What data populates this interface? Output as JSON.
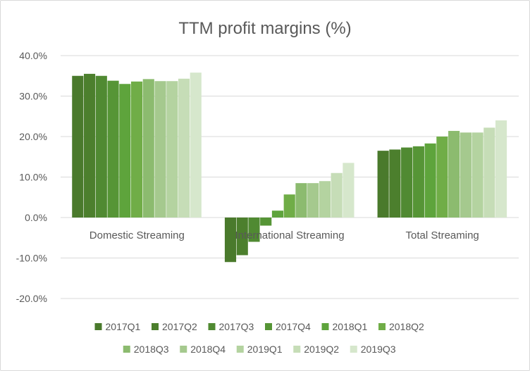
{
  "chart_data": {
    "type": "bar",
    "title": "TTM profit margins (%)",
    "categories": [
      "Domestic Streaming",
      "International Streaming",
      "Total Streaming"
    ],
    "ylim": [
      -20,
      40
    ],
    "yticks": [
      40,
      30,
      20,
      10,
      0,
      -10,
      -20
    ],
    "ytick_labels": [
      "40.0%",
      "30.0%",
      "20.0%",
      "10.0%",
      "0.0%",
      "-10.0%",
      "-20.0%"
    ],
    "grid": true,
    "legend_position": "bottom",
    "series": [
      {
        "name": "2017Q1",
        "color": "#4a7a2c",
        "values": [
          35.0,
          -11.0,
          16.5
        ]
      },
      {
        "name": "2017Q2",
        "color": "#4c7f2d",
        "values": [
          35.5,
          -9.3,
          16.8
        ]
      },
      {
        "name": "2017Q3",
        "color": "#508a32",
        "values": [
          35.0,
          -6.0,
          17.3
        ]
      },
      {
        "name": "2017Q4",
        "color": "#569536",
        "values": [
          33.8,
          -2.0,
          17.6
        ]
      },
      {
        "name": "2018Q1",
        "color": "#5ea43c",
        "values": [
          33.0,
          1.7,
          18.3
        ]
      },
      {
        "name": "2018Q2",
        "color": "#70ad47",
        "values": [
          33.6,
          5.7,
          20.0
        ]
      },
      {
        "name": "2018Q3",
        "color": "#8cbb6f",
        "values": [
          34.2,
          8.5,
          21.4
        ]
      },
      {
        "name": "2018Q4",
        "color": "#a5c98e",
        "values": [
          33.7,
          8.5,
          21.0
        ]
      },
      {
        "name": "2019Q1",
        "color": "#b4d3a0",
        "values": [
          33.7,
          9.0,
          21.0
        ]
      },
      {
        "name": "2019Q2",
        "color": "#c6ddb7",
        "values": [
          34.3,
          11.0,
          22.2
        ]
      },
      {
        "name": "2019Q3",
        "color": "#d6e7cc",
        "values": [
          35.8,
          13.5,
          24.0
        ]
      }
    ]
  }
}
